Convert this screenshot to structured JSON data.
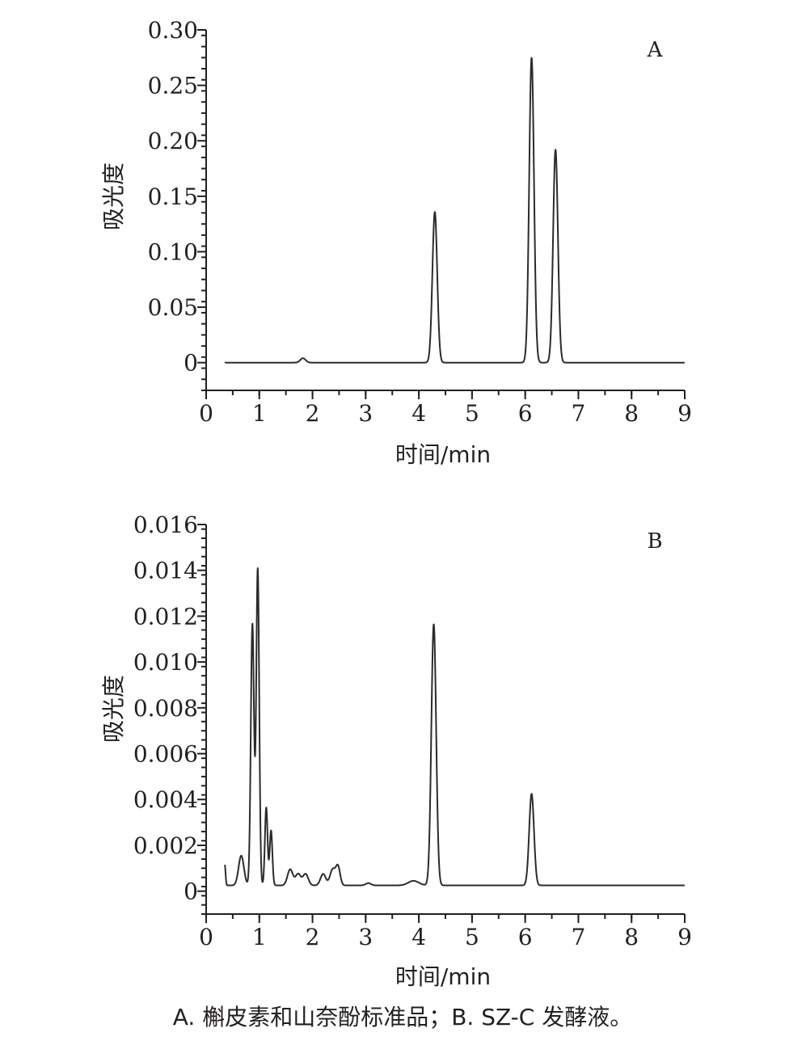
{
  "chart_data": [
    {
      "type": "line",
      "panel_label": "A",
      "xlabel": "时间/min",
      "ylabel": "吸光度",
      "xlim": [
        0,
        9
      ],
      "ylim": [
        -0.025,
        0.3
      ],
      "x_ticks": [
        0,
        1,
        2,
        3,
        4,
        5,
        6,
        7,
        8,
        9
      ],
      "x_tick_labels": [
        "0",
        "1",
        "2",
        "3",
        "4",
        "5",
        "6",
        "7",
        "8",
        "9"
      ],
      "y_ticks": [
        0,
        0.05,
        0.1,
        0.15,
        0.2,
        0.25,
        0.3
      ],
      "y_tick_labels": [
        "0",
        "0.05",
        "0.10",
        "0.15",
        "0.20",
        "0.25",
        "0.30"
      ],
      "baseline": 0,
      "peaks": [
        {
          "rt": 0.32,
          "height": 0.001,
          "width": 0.02
        },
        {
          "rt": 1.82,
          "height": 0.004,
          "width": 0.05
        },
        {
          "rt": 4.3,
          "height": 0.136,
          "width": 0.045
        },
        {
          "rt": 6.12,
          "height": 0.275,
          "width": 0.045
        },
        {
          "rt": 6.57,
          "height": 0.192,
          "width": 0.045
        }
      ]
    },
    {
      "type": "line",
      "panel_label": "B",
      "xlabel": "时间/min",
      "ylabel": "吸光度",
      "xlim": [
        0,
        9
      ],
      "ylim": [
        -0.001,
        0.016
      ],
      "x_ticks": [
        0,
        1,
        2,
        3,
        4,
        5,
        6,
        7,
        8,
        9
      ],
      "x_tick_labels": [
        "0",
        "1",
        "2",
        "3",
        "4",
        "5",
        "6",
        "7",
        "8",
        "9"
      ],
      "y_ticks": [
        0,
        0.002,
        0.004,
        0.006,
        0.008,
        0.01,
        0.012,
        0.014,
        0.016
      ],
      "y_tick_labels": [
        "0",
        "0.002",
        "0.004",
        "0.006",
        "0.008",
        "0.010",
        "0.012",
        "0.014",
        "0.016"
      ],
      "baseline": 0.00025,
      "peaks": [
        {
          "rt": 0.35,
          "height": 0.0009,
          "width": 0.015
        },
        {
          "rt": 0.66,
          "height": 0.0013,
          "width": 0.05
        },
        {
          "rt": 0.87,
          "height": 0.0114,
          "width": 0.03
        },
        {
          "rt": 0.97,
          "height": 0.0138,
          "width": 0.028
        },
        {
          "rt": 1.13,
          "height": 0.0034,
          "width": 0.025
        },
        {
          "rt": 1.22,
          "height": 0.0024,
          "width": 0.025
        },
        {
          "rt": 1.58,
          "height": 0.0007,
          "width": 0.05
        },
        {
          "rt": 1.73,
          "height": 0.0005,
          "width": 0.05
        },
        {
          "rt": 1.87,
          "height": 0.0005,
          "width": 0.05
        },
        {
          "rt": 2.2,
          "height": 0.0005,
          "width": 0.05
        },
        {
          "rt": 2.38,
          "height": 0.0007,
          "width": 0.05
        },
        {
          "rt": 2.48,
          "height": 0.0008,
          "width": 0.04
        },
        {
          "rt": 3.05,
          "height": 0.0001,
          "width": 0.05
        },
        {
          "rt": 3.9,
          "height": 0.0002,
          "width": 0.1
        },
        {
          "rt": 4.28,
          "height": 0.0114,
          "width": 0.045
        },
        {
          "rt": 6.12,
          "height": 0.004,
          "width": 0.045
        }
      ]
    }
  ],
  "caption": "A. 槲皮素和山奈酚标准品；B. SZ-C 发酵液。"
}
